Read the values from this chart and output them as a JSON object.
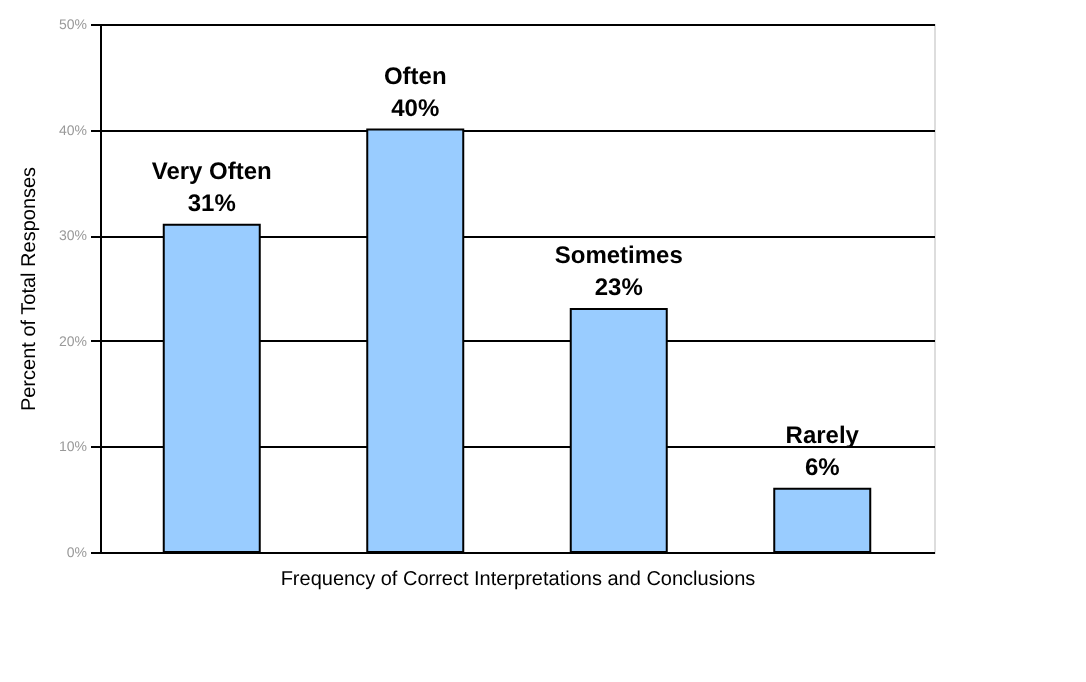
{
  "chart_data": {
    "type": "bar",
    "xlabel": "Frequency of Correct Interpretations and Conclusions",
    "ylabel": "Percent of Total Responses",
    "categories": [
      "Very Often",
      "Often",
      "Sometimes",
      "Rarely"
    ],
    "values": [
      31,
      40,
      23,
      6
    ],
    "value_labels": [
      "31%",
      "40%",
      "23%",
      "6%"
    ],
    "color": "#99ccff",
    "ylim": [
      0,
      50
    ],
    "yticks": [
      {
        "value": 0,
        "label": "0%"
      },
      {
        "value": 10,
        "label": "10%"
      },
      {
        "value": 20,
        "label": "20%"
      },
      {
        "value": 30,
        "label": "30%"
      },
      {
        "value": 40,
        "label": "40%"
      },
      {
        "value": 50,
        "label": "50%"
      }
    ],
    "grid": "y"
  }
}
